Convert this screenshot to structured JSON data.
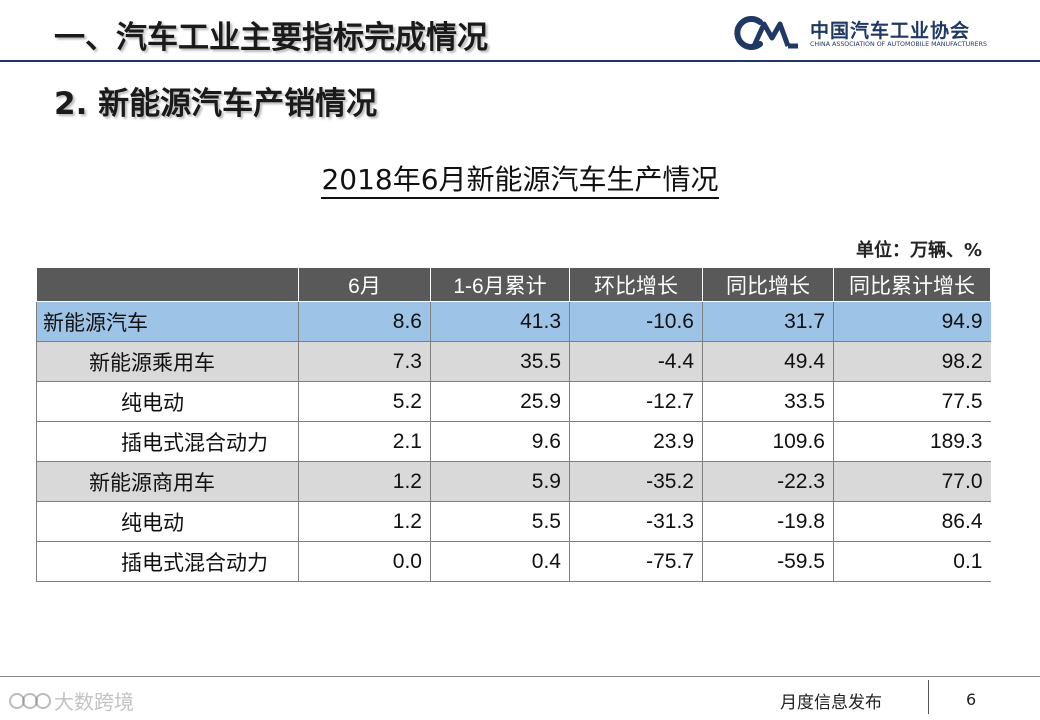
{
  "header": {
    "main_title": "一、汽车工业主要指标完成情况",
    "logo_cn": "中国汽车工业协会",
    "logo_en": "CHINA ASSOCIATION OF AUTOMOBILE MANUFACTURERS",
    "brand_color": "#1f3864"
  },
  "section_title": "2. 新能源汽车产销情况",
  "table_title": "2018年6月新能源汽车生产情况",
  "unit": "单位：万辆、%",
  "table": {
    "columns": [
      "",
      "6月",
      "1-6月累计",
      "环比增长",
      "同比增长",
      "同比累计增长"
    ],
    "rows": [
      {
        "name": "新能源汽车",
        "level": 0,
        "highlight": "blue",
        "values": [
          "8.6",
          "41.3",
          "-10.6",
          "31.7",
          "94.9"
        ]
      },
      {
        "name": "新能源乘用车",
        "level": 1,
        "highlight": "gray",
        "values": [
          "7.3",
          "35.5",
          "-4.4",
          "49.4",
          "98.2"
        ]
      },
      {
        "name": "纯电动",
        "level": 2,
        "highlight": "none",
        "values": [
          "5.2",
          "25.9",
          "-12.7",
          "33.5",
          "77.5"
        ]
      },
      {
        "name": "插电式混合动力",
        "level": 2,
        "highlight": "none",
        "values": [
          "2.1",
          "9.6",
          "23.9",
          "109.6",
          "189.3"
        ]
      },
      {
        "name": "新能源商用车",
        "level": 1,
        "highlight": "gray",
        "values": [
          "1.2",
          "5.9",
          "-35.2",
          "-22.3",
          "77.0"
        ]
      },
      {
        "name": "纯电动",
        "level": 2,
        "highlight": "none",
        "values": [
          "1.2",
          "5.5",
          "-31.3",
          "-19.8",
          "86.4"
        ]
      },
      {
        "name": "插电式混合动力",
        "level": 2,
        "highlight": "none",
        "values": [
          "0.0",
          "0.4",
          "-75.7",
          "-59.5",
          "0.1"
        ]
      }
    ],
    "colors": {
      "header_bg": "#595959",
      "highlight_blue": "#9dc3e6",
      "highlight_gray": "#d9d9d9"
    }
  },
  "footer": {
    "label": "月度信息发布",
    "page_number": "6",
    "watermark_text": "大数跨境",
    "watermark_icon": "watermark-logo-icon"
  }
}
